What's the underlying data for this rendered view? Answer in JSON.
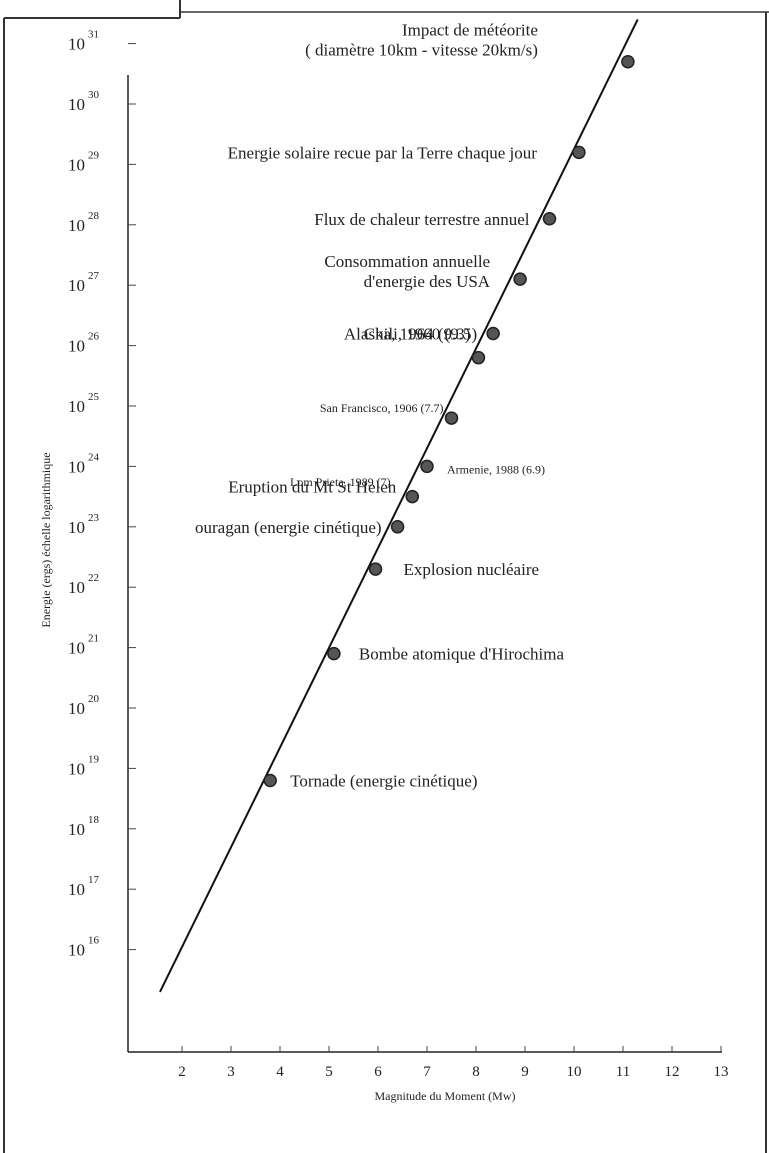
{
  "chart_data": {
    "type": "scatter",
    "xlabel": "Magnitude du Moment (Mw)",
    "ylabel": "Energie (ergs) échelle logarithmique",
    "x_ticks": [
      "2",
      "3",
      "4",
      "5",
      "6",
      "7",
      "8",
      "9",
      "10",
      "11",
      "12",
      "13"
    ],
    "xlim": [
      1.5,
      13
    ],
    "y_exponents": [
      "16",
      "17",
      "18",
      "19",
      "20",
      "21",
      "22",
      "23",
      "24",
      "25",
      "26",
      "27",
      "28",
      "29",
      "30",
      "31"
    ],
    "y_tick_base": "10",
    "ylim_log10": [
      15.3,
      31
    ],
    "scale": "log10",
    "grid": false,
    "trend_line": {
      "x": [
        1.55,
        11.3
      ],
      "log10_y": [
        15.3,
        31.4
      ]
    },
    "series": [
      {
        "points": [
          {
            "x": 3.8,
            "log10_y": 18.8,
            "label": "Tornade (energie cinétique)"
          },
          {
            "x": 5.1,
            "log10_y": 20.9,
            "label": "Bombe atomique d'Hirochima"
          },
          {
            "x": 5.95,
            "log10_y": 22.3,
            "label": "Explosion nucléaire"
          },
          {
            "x": 6.4,
            "log10_y": 23.0,
            "label": "ouragan (energie cinétique)"
          },
          {
            "x": 6.7,
            "log10_y": 23.5,
            "label": "Eruption du Mt St Helen"
          },
          {
            "x": 7.0,
            "log10_y": 24.0,
            "label": "Armenie, 1988 (6.9)"
          },
          {
            "x": 7.5,
            "log10_y": 24.8,
            "label": "San Francisco, 1906 (7.7)"
          },
          {
            "x": 8.05,
            "log10_y": 25.8,
            "label": "Alaska, 1964 (9.3)"
          },
          {
            "x": 8.35,
            "log10_y": 26.2,
            "label": "Chili, 1960 (9.5)"
          },
          {
            "x": 8.9,
            "log10_y": 27.1,
            "label": "Consommation annuelle d'energie des USA"
          },
          {
            "x": 9.5,
            "log10_y": 28.1,
            "label": "Flux de chaleur terrestre annuel"
          },
          {
            "x": 10.1,
            "log10_y": 29.2,
            "label": "Energie solaire recue par la Terre chaque jour"
          },
          {
            "x": 11.1,
            "log10_y": 30.7,
            "label": "Impact de météorite ( diamètre 10km - vitesse 20km/s)"
          }
        ]
      }
    ],
    "annotations": [
      "Lom Prieta, 1989 (7)"
    ]
  }
}
